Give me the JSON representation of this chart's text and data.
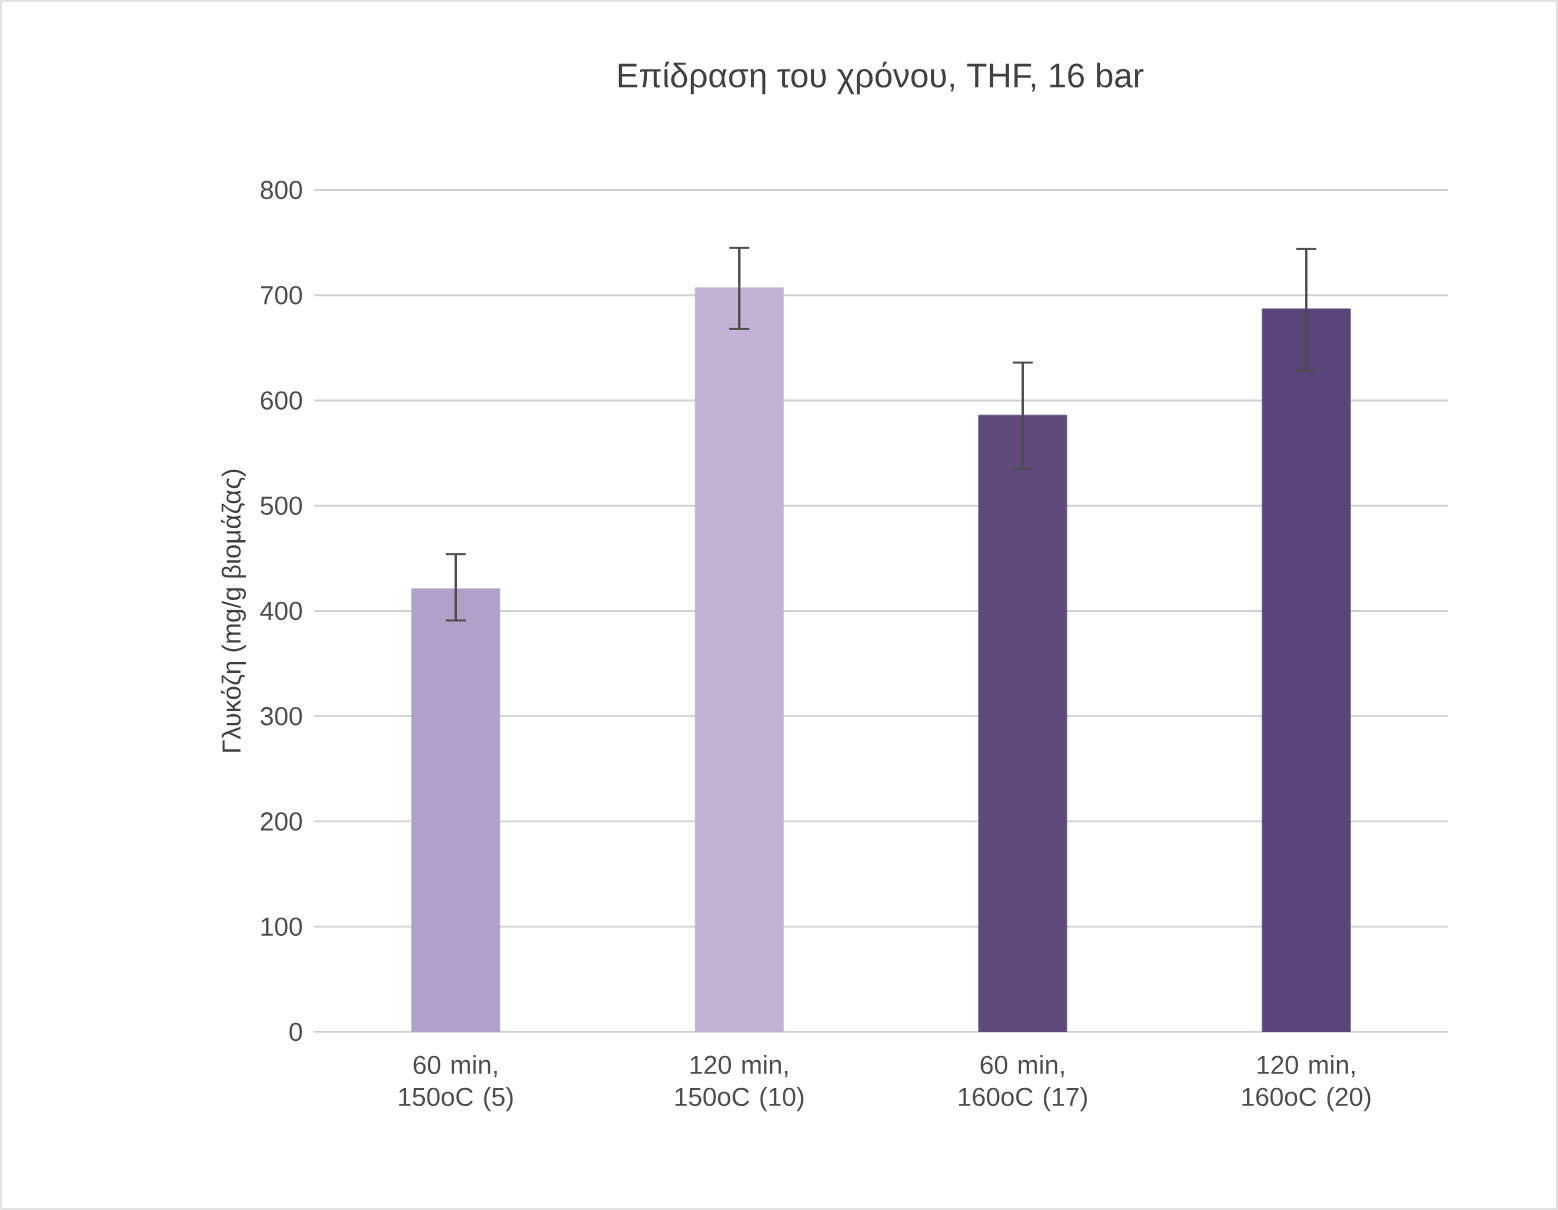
{
  "chart_data": {
    "type": "bar",
    "title": "Επίδραση του χρόνου, THF, 16 bar",
    "ylabel": "Γλυκόζη (mg/g βιομάζας)",
    "categories": [
      "60 min, 150oC (5)",
      "120 min, 150oC (10)",
      "60 min, 160oC (17)",
      "120 min, 160oC (20)"
    ],
    "values": [
      421,
      707,
      586,
      687
    ],
    "colors": [
      "#b1a0c7",
      "#c2b3d6",
      "#604a7b",
      "#5a4578"
    ],
    "errors": [
      [
        391,
        454
      ],
      [
        668,
        745
      ],
      [
        535,
        636
      ],
      [
        628,
        744
      ]
    ],
    "ylim": [
      0,
      800
    ],
    "yticks": [
      0,
      100,
      200,
      300,
      400,
      500,
      600,
      700,
      800
    ],
    "grid": "y"
  }
}
